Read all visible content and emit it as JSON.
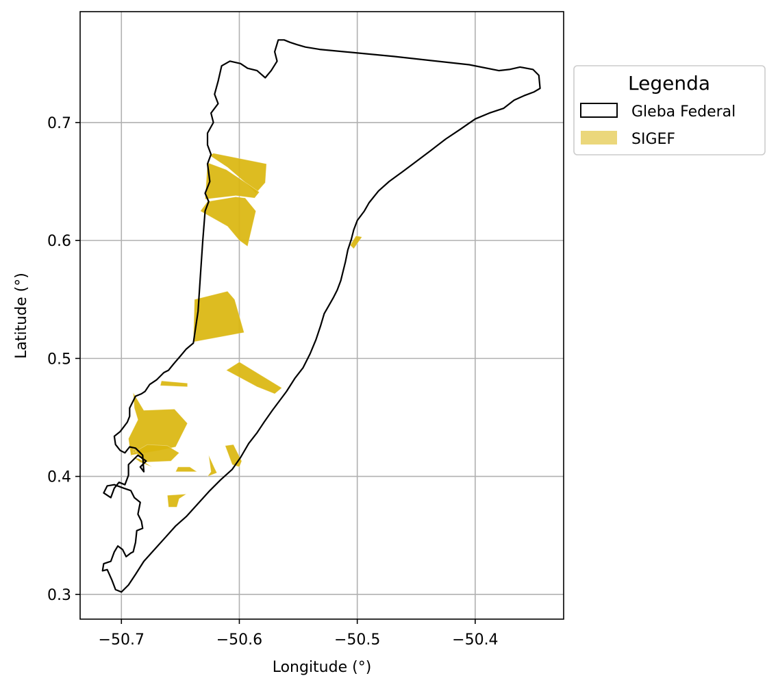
{
  "chart_data": {
    "type": "map",
    "xlabel": "Longitude (°)",
    "ylabel": "Latitude (°)",
    "xlim": [
      -50.735,
      -50.325
    ],
    "ylim": [
      0.279,
      0.794
    ],
    "x_ticks": [
      {
        "value": -50.7,
        "label": "−50.7"
      },
      {
        "value": -50.6,
        "label": "−50.6"
      },
      {
        "value": -50.5,
        "label": "−50.5"
      },
      {
        "value": -50.4,
        "label": "−50.4"
      }
    ],
    "y_ticks": [
      {
        "value": 0.3,
        "label": "0.3"
      },
      {
        "value": 0.4,
        "label": "0.4"
      },
      {
        "value": 0.5,
        "label": "0.5"
      },
      {
        "value": 0.6,
        "label": "0.6"
      },
      {
        "value": 0.7,
        "label": "0.7"
      }
    ],
    "grid": true,
    "legend": {
      "title": "Legenda",
      "placement": "outside-right-top",
      "entries": [
        {
          "label": "Gleba Federal",
          "style": "outline"
        },
        {
          "label": "SIGEF",
          "style": "fill"
        }
      ]
    },
    "colors": {
      "gleba_outline": "#000000",
      "sigef_fill": "#DAB60E",
      "grid": "#B0B0B0"
    },
    "gleba_boundary": [
      [
        -50.7,
        0.302
      ],
      [
        -50.705,
        0.304
      ],
      [
        -50.708,
        0.312
      ],
      [
        -50.712,
        0.321
      ],
      [
        -50.716,
        0.32
      ],
      [
        -50.715,
        0.326
      ],
      [
        -50.709,
        0.328
      ],
      [
        -50.706,
        0.336
      ],
      [
        -50.703,
        0.341
      ],
      [
        -50.699,
        0.338
      ],
      [
        -50.696,
        0.332
      ],
      [
        -50.692,
        0.335
      ],
      [
        -50.69,
        0.336
      ],
      [
        -50.688,
        0.344
      ],
      [
        -50.687,
        0.354
      ],
      [
        -50.682,
        0.356
      ],
      [
        -50.683,
        0.362
      ],
      [
        -50.686,
        0.368
      ],
      [
        -50.684,
        0.378
      ],
      [
        -50.689,
        0.382
      ],
      [
        -50.692,
        0.388
      ],
      [
        -50.698,
        0.39
      ],
      [
        -50.706,
        0.393
      ],
      [
        -50.712,
        0.392
      ],
      [
        -50.715,
        0.386
      ],
      [
        -50.709,
        0.382
      ],
      [
        -50.706,
        0.39
      ],
      [
        -50.702,
        0.395
      ],
      [
        -50.697,
        0.393
      ],
      [
        -50.694,
        0.401
      ],
      [
        -50.694,
        0.41
      ],
      [
        -50.69,
        0.414
      ],
      [
        -50.686,
        0.418
      ],
      [
        -50.679,
        0.413
      ],
      [
        -50.684,
        0.408
      ],
      [
        -50.681,
        0.404
      ],
      [
        -50.682,
        0.418
      ],
      [
        -50.688,
        0.424
      ],
      [
        -50.693,
        0.425
      ],
      [
        -50.697,
        0.42
      ],
      [
        -50.701,
        0.422
      ],
      [
        -50.705,
        0.427
      ],
      [
        -50.706,
        0.434
      ],
      [
        -50.701,
        0.438
      ],
      [
        -50.698,
        0.442
      ],
      [
        -50.695,
        0.446
      ],
      [
        -50.693,
        0.451
      ],
      [
        -50.693,
        0.458
      ],
      [
        -50.69,
        0.464
      ],
      [
        -50.688,
        0.468
      ],
      [
        -50.683,
        0.47
      ],
      [
        -50.68,
        0.472
      ],
      [
        -50.676,
        0.478
      ],
      [
        -50.67,
        0.482
      ],
      [
        -50.666,
        0.486
      ],
      [
        -50.664,
        0.488
      ],
      [
        -50.66,
        0.49
      ],
      [
        -50.656,
        0.495
      ],
      [
        -50.65,
        0.502
      ],
      [
        -50.645,
        0.508
      ],
      [
        -50.639,
        0.513
      ],
      [
        -50.635,
        0.54
      ],
      [
        -50.633,
        0.57
      ],
      [
        -50.631,
        0.6
      ],
      [
        -50.629,
        0.625
      ],
      [
        -50.626,
        0.633
      ],
      [
        -50.629,
        0.64
      ],
      [
        -50.625,
        0.65
      ],
      [
        -50.627,
        0.665
      ],
      [
        -50.624,
        0.673
      ],
      [
        -50.627,
        0.681
      ],
      [
        -50.627,
        0.691
      ],
      [
        -50.622,
        0.7
      ],
      [
        -50.624,
        0.708
      ],
      [
        -50.618,
        0.716
      ],
      [
        -50.621,
        0.724
      ],
      [
        -50.618,
        0.735
      ],
      [
        -50.615,
        0.748
      ],
      [
        -50.608,
        0.752
      ],
      [
        -50.599,
        0.75
      ],
      [
        -50.593,
        0.746
      ],
      [
        -50.585,
        0.744
      ],
      [
        -50.578,
        0.738
      ],
      [
        -50.573,
        0.744
      ],
      [
        -50.568,
        0.752
      ],
      [
        -50.57,
        0.76
      ],
      [
        -50.567,
        0.77
      ],
      [
        -50.562,
        0.77
      ],
      [
        -50.557,
        0.768
      ],
      [
        -50.551,
        0.766
      ],
      [
        -50.544,
        0.764
      ],
      [
        -50.532,
        0.762
      ],
      [
        -50.469,
        0.756
      ],
      [
        -50.405,
        0.749
      ],
      [
        -50.38,
        0.744
      ],
      [
        -50.371,
        0.745
      ],
      [
        -50.362,
        0.747
      ],
      [
        -50.351,
        0.745
      ],
      [
        -50.346,
        0.74
      ],
      [
        -50.345,
        0.729
      ],
      [
        -50.35,
        0.726
      ],
      [
        -50.358,
        0.723
      ],
      [
        -50.367,
        0.719
      ],
      [
        -50.376,
        0.712
      ],
      [
        -50.388,
        0.708
      ],
      [
        -50.4,
        0.703
      ],
      [
        -50.413,
        0.694
      ],
      [
        -50.425,
        0.686
      ],
      [
        -50.438,
        0.676
      ],
      [
        -50.45,
        0.667
      ],
      [
        -50.462,
        0.658
      ],
      [
        -50.473,
        0.65
      ],
      [
        -50.482,
        0.642
      ],
      [
        -50.49,
        0.632
      ],
      [
        -50.494,
        0.625
      ],
      [
        -50.5,
        0.617
      ],
      [
        -50.503,
        0.609
      ],
      [
        -50.505,
        0.601
      ],
      [
        -50.508,
        0.592
      ],
      [
        -50.51,
        0.582
      ],
      [
        -50.512,
        0.574
      ],
      [
        -50.514,
        0.566
      ],
      [
        -50.517,
        0.558
      ],
      [
        -50.52,
        0.552
      ],
      [
        -50.524,
        0.545
      ],
      [
        -50.528,
        0.538
      ],
      [
        -50.531,
        0.528
      ],
      [
        -50.535,
        0.516
      ],
      [
        -50.54,
        0.504
      ],
      [
        -50.546,
        0.492
      ],
      [
        -50.553,
        0.483
      ],
      [
        -50.56,
        0.472
      ],
      [
        -50.566,
        0.464
      ],
      [
        -50.572,
        0.456
      ],
      [
        -50.579,
        0.446
      ],
      [
        -50.585,
        0.437
      ],
      [
        -50.592,
        0.428
      ],
      [
        -50.599,
        0.416
      ],
      [
        -50.606,
        0.406
      ],
      [
        -50.616,
        0.397
      ],
      [
        -50.625,
        0.388
      ],
      [
        -50.635,
        0.377
      ],
      [
        -50.645,
        0.366
      ],
      [
        -50.654,
        0.358
      ],
      [
        -50.663,
        0.348
      ],
      [
        -50.672,
        0.338
      ],
      [
        -50.681,
        0.328
      ],
      [
        -50.688,
        0.317
      ],
      [
        -50.694,
        0.308
      ],
      [
        -50.7,
        0.302
      ]
    ],
    "sigef_parcels": [
      [
        [
          -50.622,
          0.674
        ],
        [
          -50.577,
          0.665
        ],
        [
          -50.578,
          0.649
        ],
        [
          -50.586,
          0.64
        ],
        [
          -50.596,
          0.65
        ],
        [
          -50.61,
          0.662
        ],
        [
          -50.625,
          0.672
        ]
      ],
      [
        [
          -50.627,
          0.666
        ],
        [
          -50.611,
          0.66
        ],
        [
          -50.596,
          0.65
        ],
        [
          -50.583,
          0.641
        ],
        [
          -50.587,
          0.636
        ],
        [
          -50.603,
          0.638
        ],
        [
          -50.629,
          0.635
        ],
        [
          -50.628,
          0.65
        ]
      ],
      [
        [
          -50.633,
          0.625
        ],
        [
          -50.627,
          0.633
        ],
        [
          -50.603,
          0.637
        ],
        [
          -50.595,
          0.636
        ],
        [
          -50.586,
          0.625
        ],
        [
          -50.593,
          0.595
        ],
        [
          -50.6,
          0.6
        ],
        [
          -50.61,
          0.612
        ]
      ],
      [
        [
          -50.638,
          0.55
        ],
        [
          -50.61,
          0.557
        ],
        [
          -50.604,
          0.55
        ],
        [
          -50.596,
          0.522
        ],
        [
          -50.639,
          0.514
        ]
      ],
      [
        [
          -50.611,
          0.49
        ],
        [
          -50.6,
          0.497
        ],
        [
          -50.564,
          0.475
        ],
        [
          -50.57,
          0.47
        ],
        [
          -50.585,
          0.476
        ]
      ],
      [
        [
          -50.666,
          0.481
        ],
        [
          -50.644,
          0.479
        ],
        [
          -50.644,
          0.476
        ],
        [
          -50.667,
          0.477
        ]
      ],
      [
        [
          -50.69,
          0.471
        ],
        [
          -50.681,
          0.456
        ],
        [
          -50.655,
          0.457
        ],
        [
          -50.644,
          0.445
        ],
        [
          -50.654,
          0.425
        ],
        [
          -50.668,
          0.422
        ],
        [
          -50.692,
          0.418
        ],
        [
          -50.694,
          0.432
        ],
        [
          -50.686,
          0.448
        ],
        [
          -50.689,
          0.458
        ]
      ],
      [
        [
          -50.69,
          0.424
        ],
        [
          -50.681,
          0.412
        ],
        [
          -50.658,
          0.413
        ],
        [
          -50.651,
          0.42
        ],
        [
          -50.661,
          0.426
        ],
        [
          -50.678,
          0.427
        ],
        [
          -50.69,
          0.42
        ]
      ],
      [
        [
          -50.695,
          0.42
        ],
        [
          -50.684,
          0.412
        ],
        [
          -50.674,
          0.408
        ],
        [
          -50.685,
          0.415
        ],
        [
          -50.69,
          0.416
        ]
      ],
      [
        [
          -50.652,
          0.408
        ],
        [
          -50.642,
          0.408
        ],
        [
          -50.636,
          0.404
        ],
        [
          -50.654,
          0.404
        ]
      ],
      [
        [
          -50.626,
          0.418
        ],
        [
          -50.624,
          0.404
        ],
        [
          -50.627,
          0.4
        ],
        [
          -50.619,
          0.403
        ],
        [
          -50.621,
          0.407
        ]
      ],
      [
        [
          -50.612,
          0.426
        ],
        [
          -50.605,
          0.427
        ],
        [
          -50.598,
          0.413
        ],
        [
          -50.6,
          0.408
        ],
        [
          -50.606,
          0.41
        ]
      ],
      [
        [
          -50.661,
          0.384
        ],
        [
          -50.645,
          0.385
        ],
        [
          -50.651,
          0.381
        ],
        [
          -50.653,
          0.374
        ],
        [
          -50.66,
          0.374
        ]
      ],
      [
        [
          -50.506,
          0.596
        ],
        [
          -50.501,
          0.604
        ],
        [
          -50.496,
          0.603
        ],
        [
          -50.503,
          0.593
        ]
      ]
    ]
  }
}
